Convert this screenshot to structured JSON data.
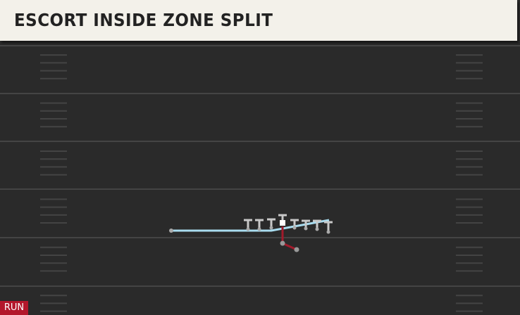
{
  "header": {
    "title": "ESCORT INSIDE ZONE SPLIT"
  },
  "tag": {
    "label": "RUN"
  }
}
